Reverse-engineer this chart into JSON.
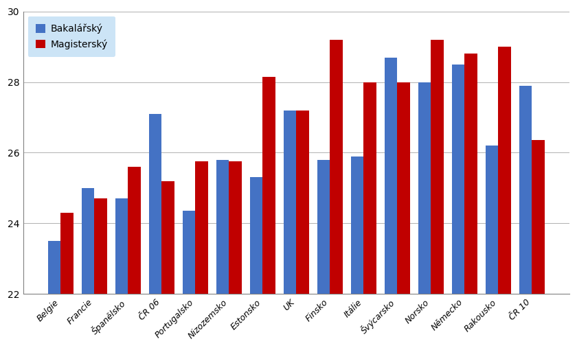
{
  "categories": [
    "Belgie",
    "Francie",
    "Španělsko",
    "ČR 06",
    "Portugalsko",
    "Nizozemsko",
    "Estonsko",
    "UK",
    "Finsko",
    "Itálie",
    "Švýcarsko",
    "Norsko",
    "Německo",
    "Rakousko",
    "ČR 10"
  ],
  "bakalarske": [
    23.5,
    25.0,
    24.7,
    27.1,
    24.35,
    25.8,
    25.3,
    27.2,
    25.8,
    25.9,
    28.7,
    28.0,
    28.5,
    26.2,
    27.9
  ],
  "magisterske": [
    24.3,
    24.7,
    25.6,
    25.2,
    25.75,
    25.75,
    28.15,
    27.2,
    29.2,
    28.0,
    28.0,
    29.2,
    28.8,
    29.0,
    26.35
  ],
  "color_bakalarske": "#4472C4",
  "color_magisterske": "#C00000",
  "legend_bakalarske": "Bakalářský",
  "legend_magisterske": "Magisterský",
  "legend_bg": "#CCE4F6",
  "ylim": [
    22,
    30
  ],
  "yticks": [
    22,
    24,
    26,
    28,
    30
  ],
  "background_color": "#FFFFFF",
  "grid_color": "#B0B0B0",
  "spine_color": "#808080"
}
